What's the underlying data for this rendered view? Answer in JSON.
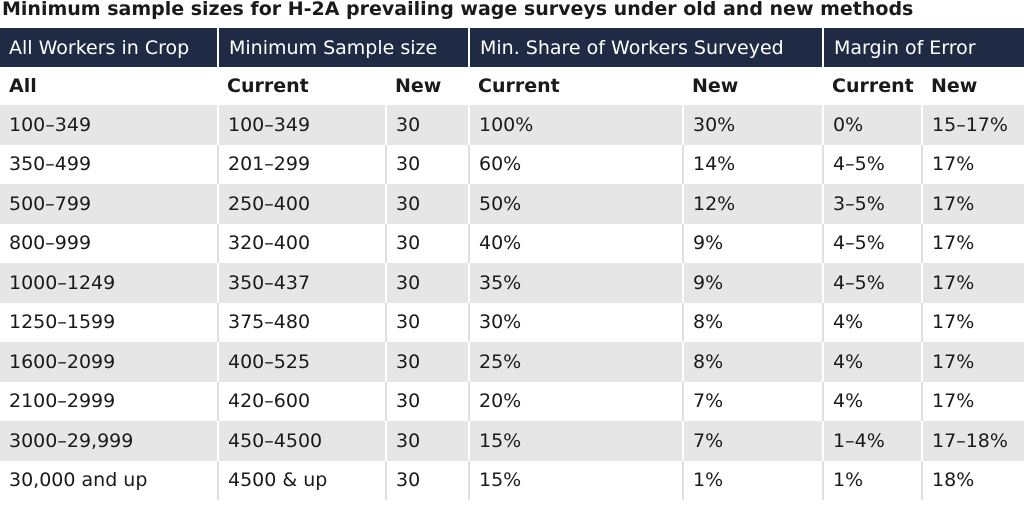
{
  "title": "Minimum sample sizes for H-2A prevailing wage surveys under old and new methods",
  "header_groups": [
    "All Workers in Crop",
    "Minimum Sample size",
    "Min. Share of Workers Surveyed",
    "Margin of Error"
  ],
  "subheaders": [
    "All",
    "Current",
    "New",
    "Current",
    "New",
    "Current",
    "New"
  ],
  "rows": [
    [
      "100–349",
      "100–349",
      "30",
      "100%",
      "30%",
      "0%",
      "15–17%"
    ],
    [
      "350–499",
      "201–299",
      "30",
      "60%",
      "14%",
      "4–5%",
      "17%"
    ],
    [
      "500–799",
      "250–400",
      "30",
      "50%",
      "12%",
      "3–5%",
      "17%"
    ],
    [
      "800–999",
      "320–400",
      "30",
      "40%",
      "9%",
      "4–5%",
      "17%"
    ],
    [
      "1000–1249",
      "350–437",
      "30",
      "35%",
      "9%",
      "4–5%",
      "17%"
    ],
    [
      "1250–1599",
      "375–480",
      "30",
      "30%",
      "8%",
      "4%",
      "17%"
    ],
    [
      "1600–2099",
      "400–525",
      "30",
      "25%",
      "8%",
      "4%",
      "17%"
    ],
    [
      "2100–2999",
      "420–600",
      "30",
      "20%",
      "7%",
      "4%",
      "17%"
    ],
    [
      "3000–29,999",
      "450–4500",
      "30",
      "15%",
      "7%",
      "1–4%",
      "17–18%"
    ],
    [
      "30,000 and up",
      "4500 & up",
      "30",
      "15%",
      "1%",
      "1%",
      "18%"
    ]
  ],
  "colors": {
    "header_bg": "#1f2a44",
    "header_text": "#ffffff",
    "band": "#e6e6e6"
  }
}
